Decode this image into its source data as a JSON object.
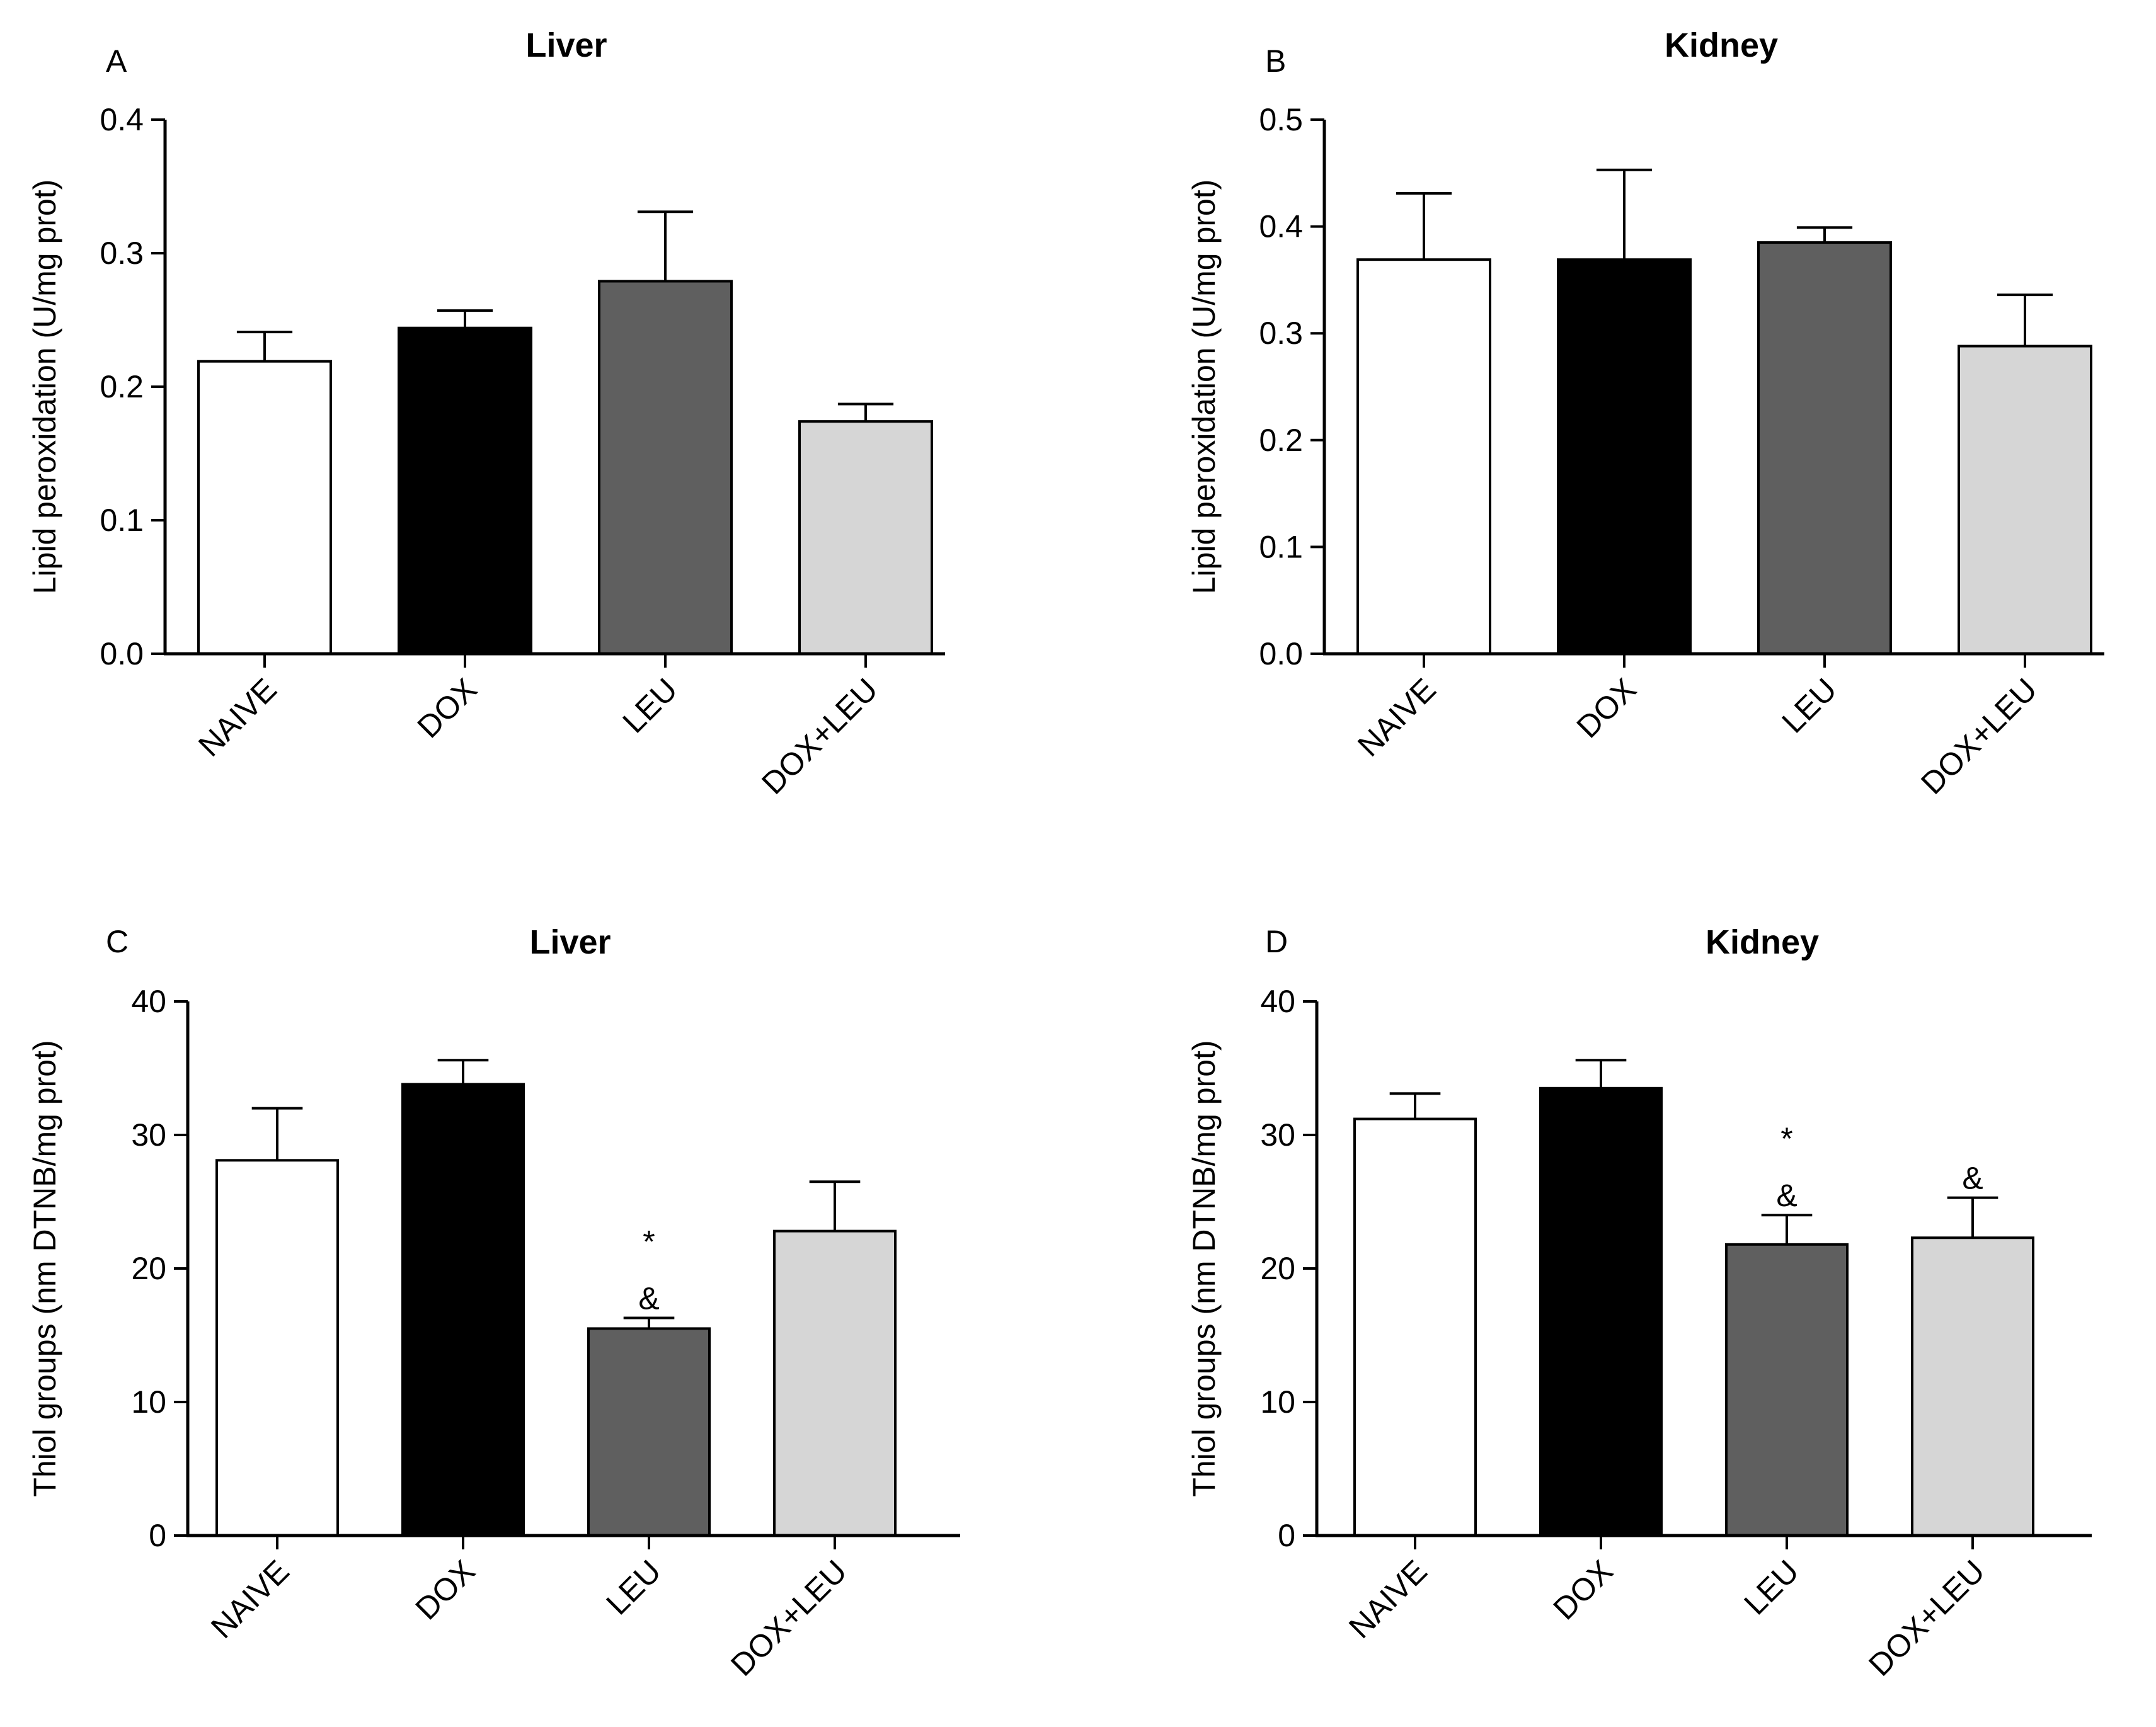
{
  "chart_data": [
    {
      "type": "bar",
      "panel": "A",
      "title": "Liver",
      "xlabel": "",
      "ylabel": "Lipid peroxidation (U/mg prot)",
      "ylim": [
        0,
        0.4
      ],
      "ticks": [
        "0.0",
        "0.1",
        "0.2",
        "0.3",
        "0.4"
      ],
      "tick_values": [
        0,
        0.1,
        0.2,
        0.3,
        0.4
      ],
      "categories": [
        "NAIVE",
        "DOX",
        "LEU",
        "DOX+LEU"
      ],
      "values": [
        0.219,
        0.244,
        0.279,
        0.174
      ],
      "errors": [
        0.022,
        0.013,
        0.052,
        0.013
      ],
      "colors": [
        "#ffffff",
        "#000000",
        "#5f5f5f",
        "#d6d6d6"
      ],
      "annotations": [
        [],
        [],
        [],
        []
      ]
    },
    {
      "type": "bar",
      "panel": "B",
      "title": "Kidney",
      "xlabel": "",
      "ylabel": "Lipid peroxidation (U/mg prot)",
      "ylim": [
        0,
        0.5
      ],
      "ticks": [
        "0.0",
        "0.1",
        "0.2",
        "0.3",
        "0.4",
        "0.5"
      ],
      "tick_values": [
        0,
        0.1,
        0.2,
        0.3,
        0.4,
        0.5
      ],
      "categories": [
        "NAIVE",
        "DOX",
        "LEU",
        "DOX+LEU"
      ],
      "values": [
        0.369,
        0.369,
        0.385,
        0.288
      ],
      "errors": [
        0.062,
        0.084,
        0.014,
        0.048
      ],
      "colors": [
        "#ffffff",
        "#000000",
        "#5f5f5f",
        "#d6d6d6"
      ],
      "annotations": [
        [],
        [],
        [],
        []
      ]
    },
    {
      "type": "bar",
      "panel": "C",
      "title": "Liver",
      "xlabel": "",
      "ylabel": "Thiol groups (nm DTNB/mg prot)",
      "ylim": [
        0,
        40
      ],
      "ticks": [
        "0",
        "10",
        "20",
        "30",
        "40"
      ],
      "tick_values": [
        0,
        10,
        20,
        30,
        40
      ],
      "categories": [
        "NAIVE",
        "DOX",
        "LEU",
        "DOX+LEU"
      ],
      "values": [
        28.1,
        33.8,
        15.5,
        22.8
      ],
      "errors": [
        3.9,
        1.8,
        0.8,
        3.7
      ],
      "colors": [
        "#ffffff",
        "#000000",
        "#5f5f5f",
        "#d6d6d6"
      ],
      "annotations": [
        [],
        [],
        [
          "*",
          "&"
        ],
        []
      ]
    },
    {
      "type": "bar",
      "panel": "D",
      "title": "Kidney",
      "xlabel": "",
      "ylabel": "Thiol groups (nm DTNB/mg prot)",
      "ylim": [
        0,
        40
      ],
      "ticks": [
        "0",
        "10",
        "20",
        "30",
        "40"
      ],
      "tick_values": [
        0,
        10,
        20,
        30,
        40
      ],
      "categories": [
        "NAIVE",
        "DOX",
        "LEU",
        "DOX+LEU"
      ],
      "values": [
        31.2,
        33.5,
        21.8,
        22.3
      ],
      "errors": [
        1.9,
        2.1,
        2.2,
        3.0
      ],
      "colors": [
        "#ffffff",
        "#000000",
        "#5f5f5f",
        "#d6d6d6"
      ],
      "annotations": [
        [],
        [],
        [
          "*",
          "&"
        ],
        [
          "&"
        ]
      ]
    }
  ]
}
